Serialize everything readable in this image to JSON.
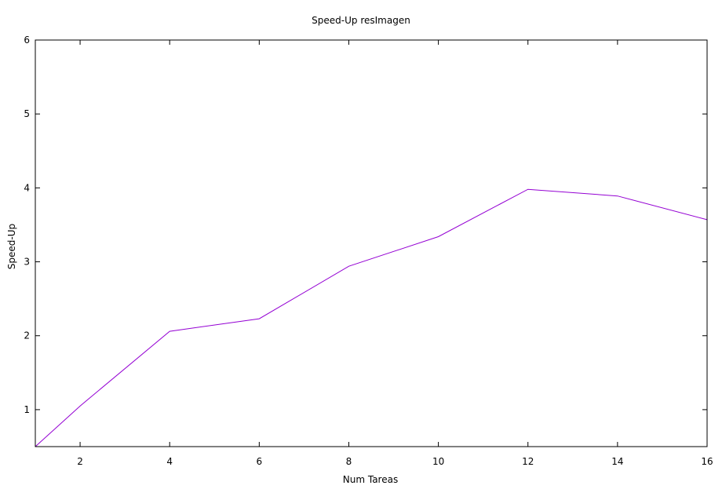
{
  "chart_data": {
    "type": "line",
    "title": "Speed-Up resImagen",
    "xlabel": "Num Tareas",
    "ylabel": "Speed-Up",
    "xlim": [
      1,
      16
    ],
    "ylim": [
      0.5,
      6
    ],
    "xticks": [
      2,
      4,
      6,
      8,
      10,
      12,
      14,
      16
    ],
    "yticks": [
      1,
      2,
      3,
      4,
      5,
      6
    ],
    "grid": false,
    "series": [
      {
        "color": "#9400d3",
        "x": [
          1,
          2,
          4,
          6,
          8,
          10,
          12,
          14,
          16
        ],
        "y": [
          0.5,
          1.05,
          2.06,
          2.23,
          2.94,
          3.34,
          3.98,
          3.89,
          3.57
        ]
      }
    ]
  }
}
